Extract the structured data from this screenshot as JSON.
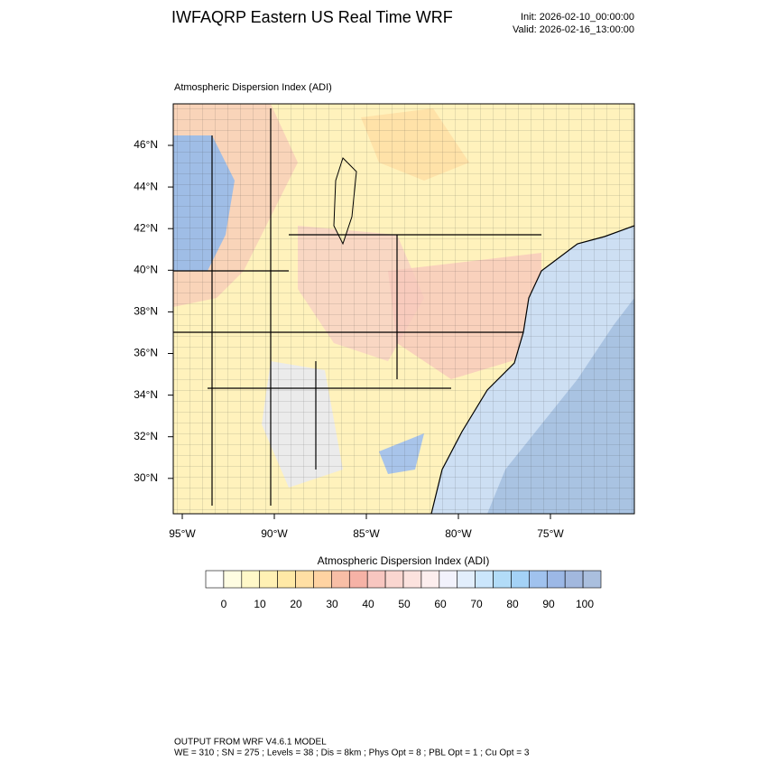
{
  "header": {
    "title": "IWFAQRP Eastern US Real Time WRF",
    "init": "Init: 2026-02-10_00:00:00",
    "valid": "Valid: 2026-02-16_13:00:00"
  },
  "map": {
    "label": "Atmospheric Dispersion Index   (ADI)",
    "lat_labels": [
      "46°N",
      "44°N",
      "42°N",
      "40°N",
      "38°N",
      "36°N",
      "34°N",
      "32°N",
      "30°N"
    ],
    "lon_labels": [
      "95°W",
      "90°W",
      "85°W",
      "80°W",
      "75°W"
    ]
  },
  "colorbar": {
    "title": "Atmospheric Dispersion Index  (ADI)",
    "labels": [
      "0",
      "10",
      "20",
      "30",
      "40",
      "50",
      "60",
      "70",
      "80",
      "90",
      "100"
    ],
    "colors": [
      "#ffffff",
      "#fffde2",
      "#fff8c8",
      "#fff1b4",
      "#ffe9a6",
      "#ffdfa4",
      "#ffd3a2",
      "#f8bea6",
      "#f6b2a6",
      "#f8c6c0",
      "#fad6d0",
      "#fce2de",
      "#fdeeee",
      "#f2f2fc",
      "#e2eefc",
      "#cbe6fc",
      "#b2dcf8",
      "#a4d2f6",
      "#a0c2ee",
      "#9cb8e6",
      "#a2b8de",
      "#aabfde"
    ]
  },
  "footer": {
    "line1": "OUTPUT FROM WRF V4.6.1 MODEL",
    "line2": "WE = 310 ; SN = 275 ; Levels = 38 ; Dis = 8km ; Phys Opt = 8 ; PBL Opt = 1 ; Cu Opt = 3"
  }
}
